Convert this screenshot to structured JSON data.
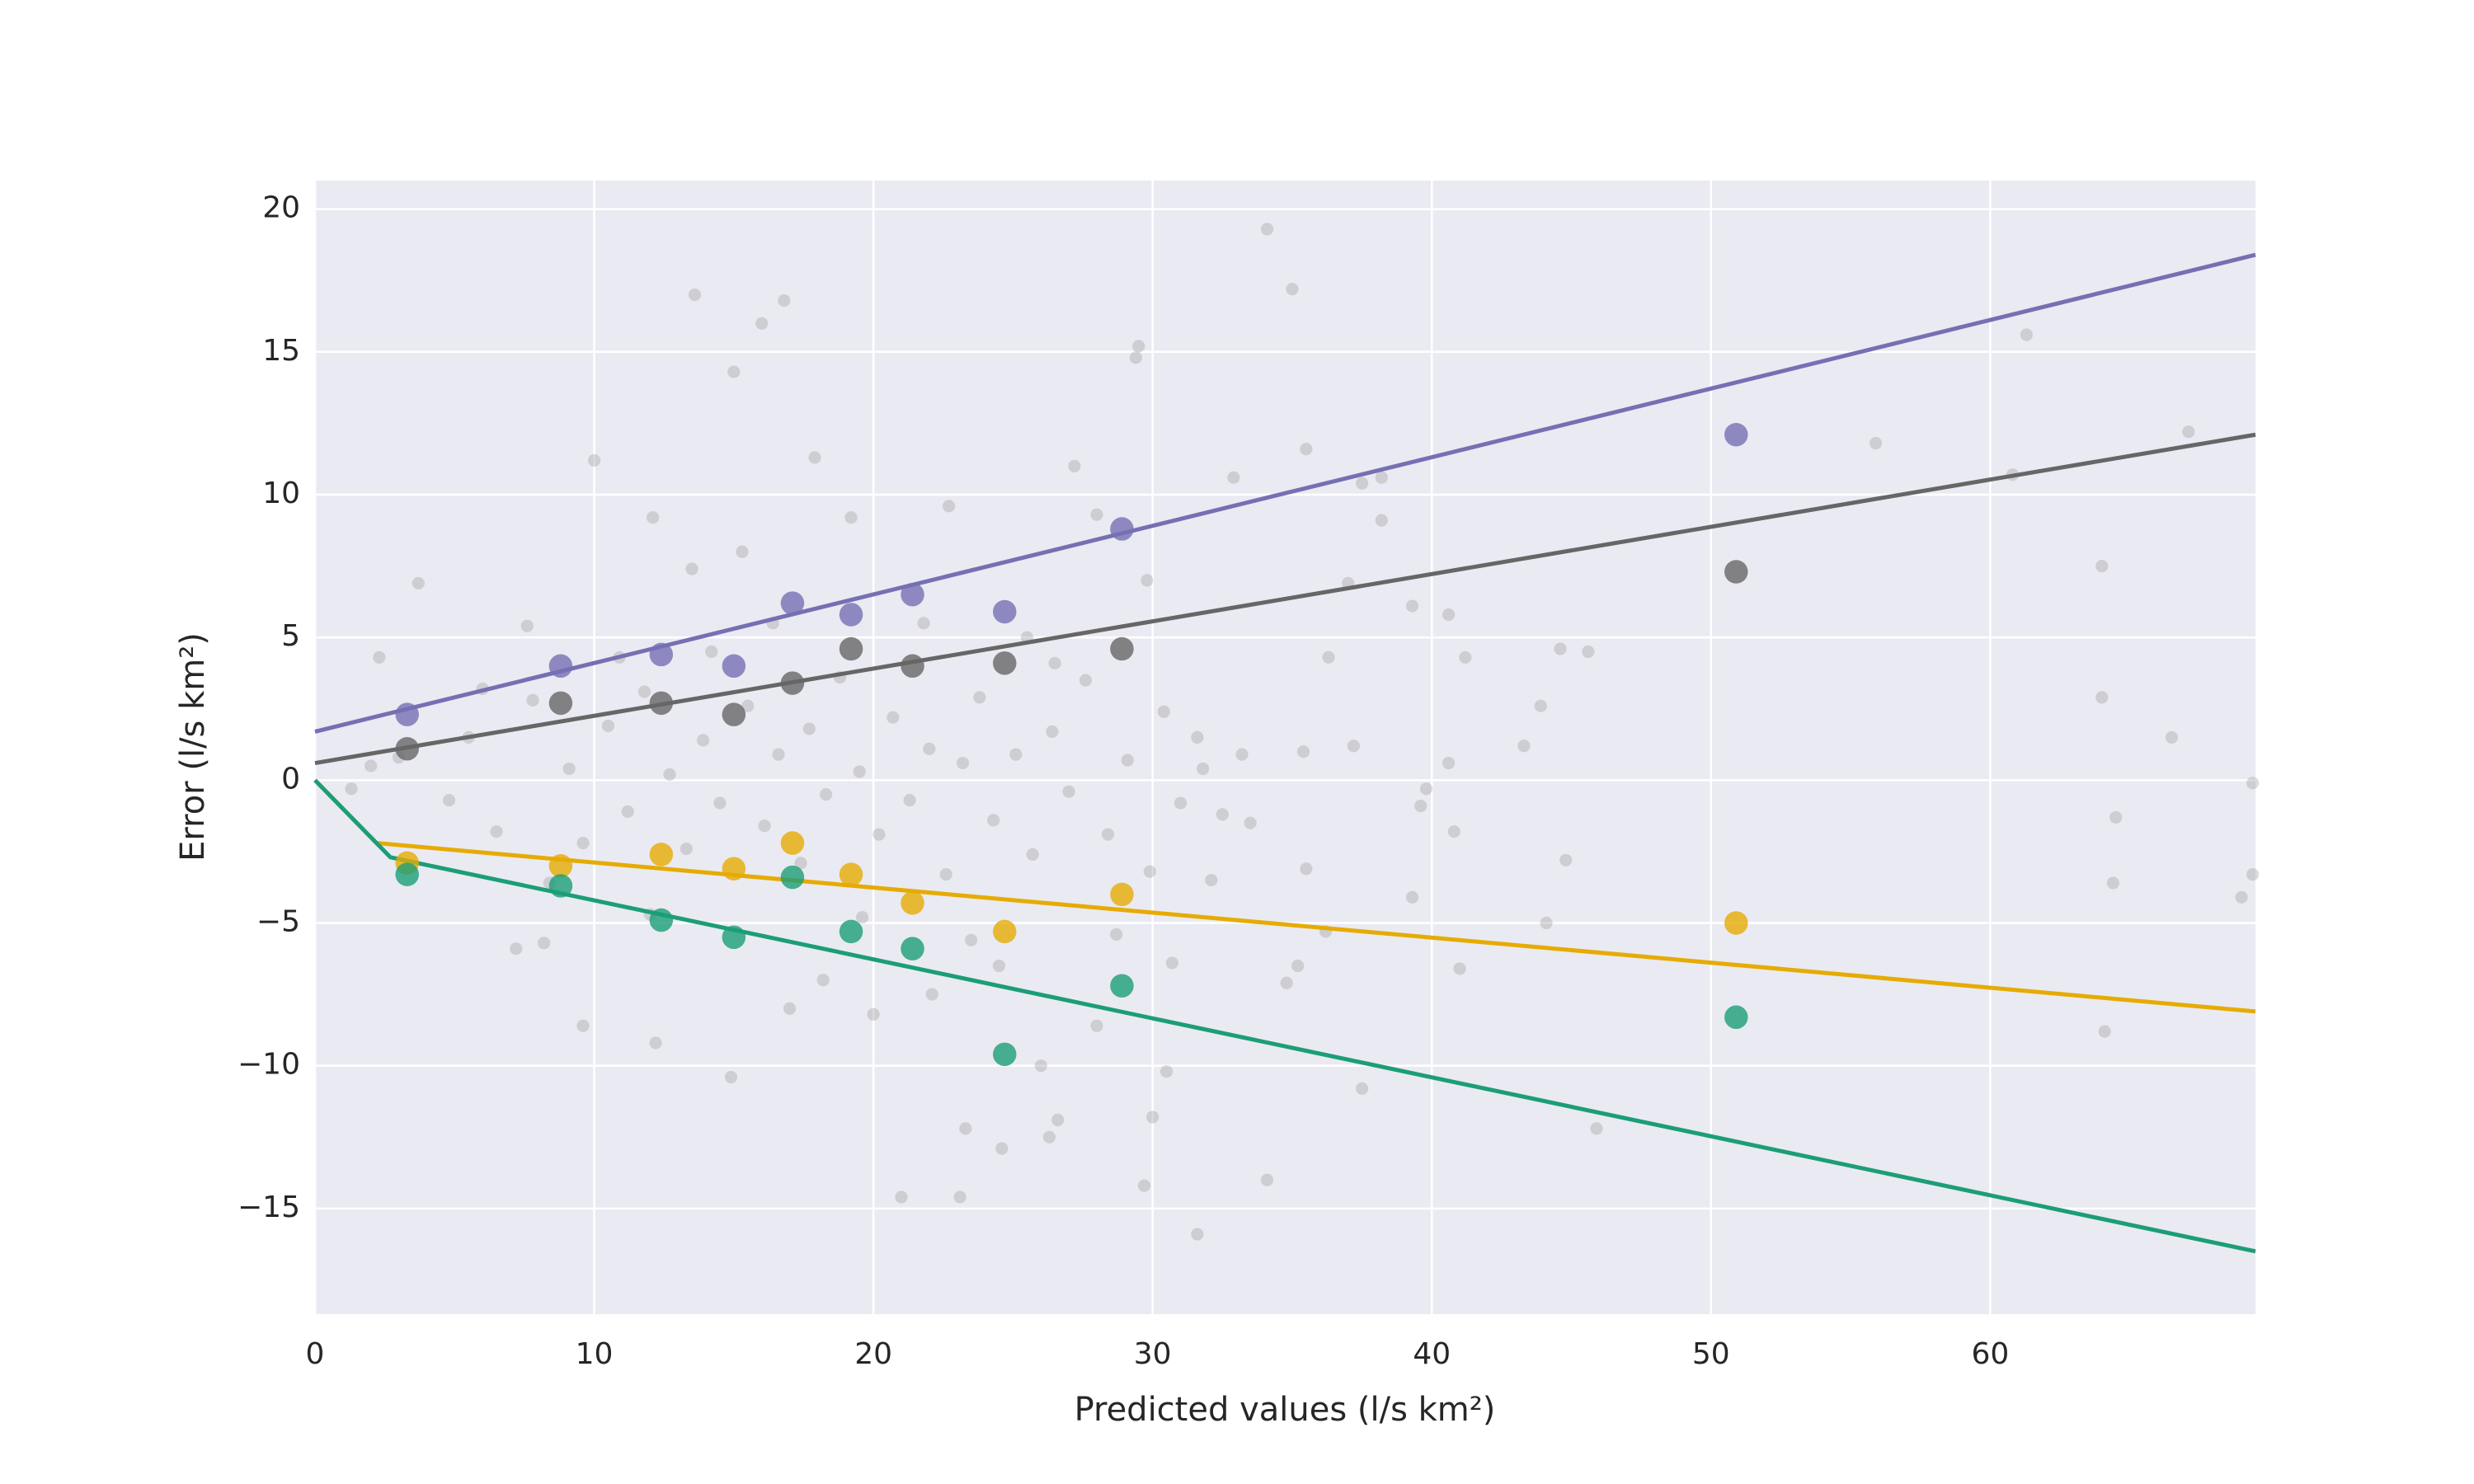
{
  "chart_data": {
    "type": "scatter",
    "xlabel": "Predicted values (l/s km²)",
    "ylabel": "Error (l/s km²)",
    "xlim": [
      0,
      69.5
    ],
    "ylim": [
      -18.7,
      21
    ],
    "xticks": [
      0,
      10,
      20,
      30,
      40,
      50,
      60
    ],
    "yticks": [
      {
        "value": -15,
        "label": "−15"
      },
      {
        "value": -10,
        "label": "−10"
      },
      {
        "value": -5,
        "label": "−5"
      },
      0,
      5,
      10,
      15,
      20
    ],
    "grid": true,
    "series": [
      {
        "type": "scatter",
        "color": "#999999",
        "opacity": 0.35,
        "size": 8,
        "x": [
          34.1,
          35,
          13.6,
          16.8,
          16,
          15,
          29.5,
          29.4,
          10,
          17.9,
          27.2,
          35.5,
          38.2,
          37.5,
          61.3,
          67.1,
          55.9,
          60.8,
          64,
          66.5,
          64,
          69.4,
          69.4,
          69,
          64.4,
          64.5,
          64.1,
          45.9,
          44.6,
          45.6,
          43.9,
          43.3,
          41.2,
          40.6,
          39.3,
          40.6,
          40.8,
          41,
          39.8,
          39.6,
          44.8,
          44.1,
          39.3,
          37.5,
          38.2,
          36.3,
          37,
          37.2,
          35.2,
          34.8,
          34.1,
          31.6,
          29.7,
          23.1,
          21,
          24.6,
          23.3,
          26.3,
          26.6,
          30,
          14.9,
          12.2,
          9.6,
          17,
          20,
          28,
          30.5,
          26,
          3.7,
          2.3,
          7.6,
          12.1,
          13.5,
          15.3,
          19.2,
          22.7,
          28,
          29.8,
          32.9,
          25.5,
          33.5,
          32.1,
          31.6,
          24.5,
          22.1,
          18.2,
          7.2,
          8.2,
          1.3,
          2,
          3,
          4.8,
          5.5,
          6.5,
          7.8,
          9.1,
          9.6,
          10.5,
          11.2,
          11.8,
          12.7,
          13.3,
          13.9,
          14.5,
          15.5,
          16.1,
          16.6,
          17.4,
          17.7,
          18.3,
          18.8,
          19.5,
          20.2,
          20.7,
          21.3,
          22,
          22.6,
          23.2,
          23.8,
          24.3,
          25.1,
          25.7,
          26.4,
          27,
          27.6,
          28.4,
          29.1,
          29.9,
          30.4,
          31,
          31.8,
          32.5,
          33.2,
          35.4,
          36.2,
          35.5,
          6,
          8.4,
          10.9,
          12,
          14.2,
          16.4,
          19.6,
          21.8,
          23.5,
          26.5,
          28.7,
          30.7
        ],
        "values": [
          19.3,
          17.2,
          17,
          16.8,
          16,
          14.3,
          15.2,
          14.8,
          11.2,
          11.3,
          11,
          11.6,
          10.6,
          10.4,
          15.6,
          12.2,
          11.8,
          10.7,
          7.5,
          1.5,
          2.9,
          -0.1,
          -3.3,
          -4.1,
          -3.6,
          -1.3,
          -8.8,
          -12.2,
          4.6,
          4.5,
          2.6,
          1.2,
          4.3,
          5.8,
          6.1,
          0.6,
          -1.8,
          -6.6,
          -0.3,
          -0.9,
          -2.8,
          -5,
          -4.1,
          -10.8,
          9.1,
          4.3,
          6.9,
          1.2,
          -6.5,
          -7.1,
          -14,
          -15.9,
          -14.2,
          -14.6,
          -14.6,
          -12.9,
          -12.2,
          -12.5,
          -11.9,
          -11.8,
          -10.4,
          -9.2,
          -8.6,
          -8,
          -8.2,
          -8.6,
          -10.2,
          -10,
          6.9,
          4.3,
          5.4,
          9.2,
          7.4,
          8,
          9.2,
          9.6,
          9.3,
          7,
          10.6,
          5,
          -1.5,
          -3.5,
          1.5,
          -6.5,
          -7.5,
          -7,
          -5.9,
          -5.7,
          -0.3,
          0.5,
          0.8,
          -0.7,
          1.5,
          -1.8,
          2.8,
          0.4,
          -2.2,
          1.9,
          -1.1,
          3.1,
          0.2,
          -2.4,
          1.4,
          -0.8,
          2.6,
          -1.6,
          0.9,
          -2.9,
          1.8,
          -0.5,
          3.6,
          0.3,
          -1.9,
          2.2,
          -0.7,
          1.1,
          -3.3,
          0.6,
          2.9,
          -1.4,
          0.9,
          -2.6,
          1.7,
          -0.4,
          3.5,
          -1.9,
          0.7,
          -3.2,
          2.4,
          -0.8,
          0.4,
          -1.2,
          0.9,
          1,
          -5.3,
          -3.1,
          3.2,
          -3.6,
          4.3,
          -4.7,
          4.5,
          5.5,
          -4.8,
          5.5,
          -5.6,
          4.1,
          -5.4,
          -6.4
        ]
      },
      {
        "type": "line",
        "color": "#7570b3",
        "x": [
          0,
          69.5
        ],
        "values": [
          1.7,
          18.4
        ]
      },
      {
        "type": "line",
        "color": "#666666",
        "x": [
          0,
          69.5
        ],
        "values": [
          0.6,
          12.1
        ]
      },
      {
        "type": "line",
        "color": "#e6ab02",
        "x": [
          0,
          2.2,
          69.5
        ],
        "values": [
          0,
          -2.2,
          -8.1
        ]
      },
      {
        "type": "line",
        "color": "#1b9e77",
        "x": [
          0,
          2.7,
          69.5
        ],
        "values": [
          0,
          -2.7,
          -16.5
        ]
      },
      {
        "type": "scatter",
        "color": "#7570b3",
        "opacity": 0.8,
        "size": 15,
        "x": [
          3.3,
          8.8,
          12.4,
          15.0,
          17.1,
          19.2,
          21.4,
          24.7,
          28.9,
          50.9
        ],
        "values": [
          2.3,
          4.0,
          4.4,
          4.0,
          6.2,
          5.8,
          6.5,
          5.9,
          8.8,
          12.1
        ]
      },
      {
        "type": "scatter",
        "color": "#666666",
        "opacity": 0.8,
        "size": 15,
        "x": [
          3.3,
          8.8,
          12.4,
          15.0,
          17.1,
          19.2,
          21.4,
          24.7,
          28.9,
          50.9
        ],
        "values": [
          1.1,
          2.7,
          2.7,
          2.3,
          3.4,
          4.6,
          4.0,
          4.1,
          4.6,
          7.3
        ]
      },
      {
        "type": "scatter",
        "color": "#e6ab02",
        "opacity": 0.8,
        "size": 15,
        "x": [
          3.3,
          8.8,
          12.4,
          15.0,
          17.1,
          19.2,
          21.4,
          24.7,
          28.9,
          50.9
        ],
        "values": [
          -2.9,
          -3.0,
          -2.6,
          -3.1,
          -2.2,
          -3.3,
          -4.3,
          -5.3,
          -4.0,
          -5.0
        ]
      },
      {
        "type": "scatter",
        "color": "#1b9e77",
        "opacity": 0.8,
        "size": 15,
        "x": [
          3.3,
          8.8,
          12.4,
          15.0,
          17.1,
          19.2,
          21.4,
          24.7,
          28.9,
          50.9
        ],
        "values": [
          -3.3,
          -3.7,
          -4.9,
          -5.5,
          -3.4,
          -5.3,
          -5.9,
          -9.6,
          -7.2,
          -8.3
        ]
      }
    ]
  }
}
